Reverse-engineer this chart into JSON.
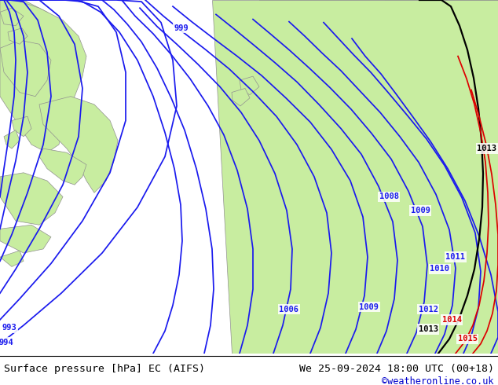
{
  "title_left": "Surface pressure [hPa] EC (AIFS)",
  "title_right": "We 25-09-2024 18:00 UTC (00+18)",
  "credit": "©weatheronline.co.uk",
  "sea_color": "#d0d0d8",
  "land_color": "#c8eda0",
  "land_edge_color": "#909090",
  "blue": "#1a1aee",
  "black": "#000000",
  "red": "#dd0000",
  "white": "#ffffff",
  "figsize": [
    6.34,
    4.9
  ],
  "dpi": 100,
  "bottom_bar_height": 0.082,
  "credit_color": "#0000cc",
  "title_fontsize": 9.5,
  "credit_fontsize": 8.5,
  "label_fontsize": 7.5,
  "contour_lw": 1.25,
  "contour_lw_thick": 1.6
}
